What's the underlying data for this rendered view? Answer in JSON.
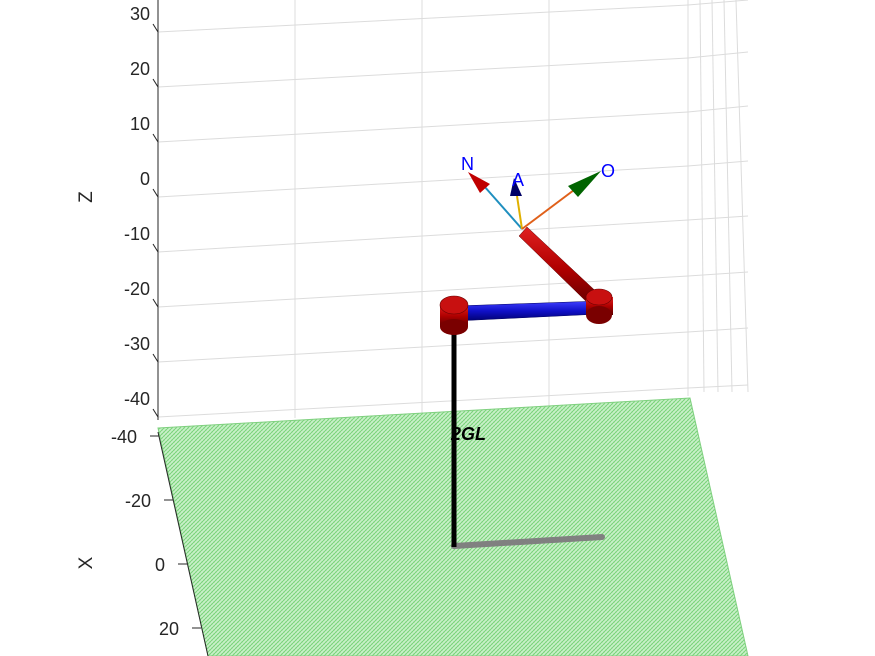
{
  "axes": {
    "z_label": "Z",
    "x_label": "X",
    "z_ticks": [
      "30",
      "20",
      "10",
      "0",
      "-10",
      "-20",
      "-30",
      "-40"
    ],
    "x_ticks": [
      "-40",
      "-20",
      "0",
      "20"
    ]
  },
  "robot": {
    "name": "2GL",
    "frame_labels": {
      "n": "N",
      "a": "A",
      "o": "O"
    }
  },
  "colors": {
    "floor": "#9fe09f",
    "link_red": "#b00000",
    "link_blue": "#1010c8",
    "base_pole": "#000000",
    "shadow": "#808080",
    "n_axis": "#1f8fbf",
    "a_axis": "#e0b000",
    "o_axis": "#e0601a",
    "n_arrow": "#c00000",
    "a_arrow": "#000066",
    "o_arrow": "#006400",
    "label_blue": "#0000ff"
  }
}
